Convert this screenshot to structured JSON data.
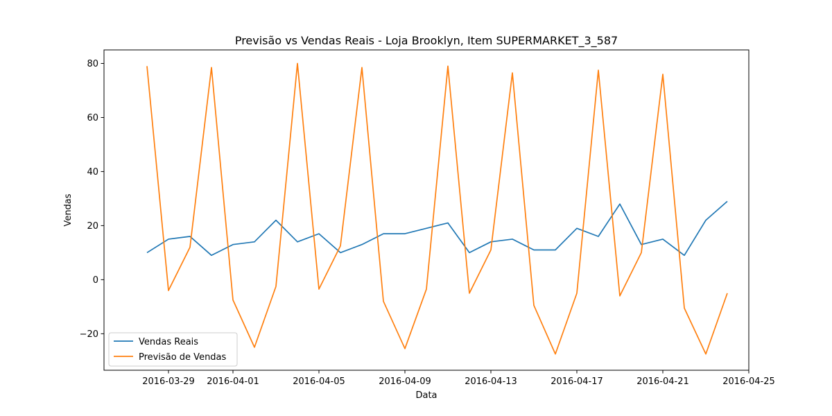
{
  "chart_data": {
    "type": "line",
    "title": "Previsão vs Vendas Reais - Loja Brooklyn, Item SUPERMARKET_3_587",
    "xlabel": "Data",
    "ylabel": "Vendas",
    "xlim": [
      "2016-03-26",
      "2016-04-25"
    ],
    "ylim": [
      -33.5,
      85
    ],
    "x_ticks": [
      "2016-03-29",
      "2016-04-01",
      "2016-04-05",
      "2016-04-09",
      "2016-04-13",
      "2016-04-17",
      "2016-04-21",
      "2016-04-25"
    ],
    "y_ticks": [
      -20,
      0,
      20,
      40,
      60,
      80
    ],
    "grid": false,
    "legend_position": "lower-left",
    "x": [
      "2016-03-28",
      "2016-03-29",
      "2016-03-30",
      "2016-03-31",
      "2016-04-01",
      "2016-04-02",
      "2016-04-03",
      "2016-04-04",
      "2016-04-05",
      "2016-04-06",
      "2016-04-07",
      "2016-04-08",
      "2016-04-09",
      "2016-04-10",
      "2016-04-11",
      "2016-04-12",
      "2016-04-13",
      "2016-04-14",
      "2016-04-15",
      "2016-04-16",
      "2016-04-17",
      "2016-04-18",
      "2016-04-19",
      "2016-04-20",
      "2016-04-21",
      "2016-04-22",
      "2016-04-23",
      "2016-04-24"
    ],
    "series": [
      {
        "name": "Vendas Reais",
        "color": "#1f77b4",
        "values": [
          10,
          15,
          16,
          9,
          13,
          14,
          22,
          14,
          17,
          10,
          13,
          17,
          17,
          19,
          21,
          10,
          14,
          15,
          11,
          11,
          19,
          16,
          28,
          13,
          15,
          9,
          22,
          29
        ]
      },
      {
        "name": "Previsão de Vendas",
        "color": "#ff7f0e",
        "values": [
          79,
          -4,
          12,
          78.5,
          -7.5,
          -25,
          -2.5,
          80,
          -3.5,
          12.5,
          78.5,
          -8,
          -25.5,
          -3.5,
          79,
          -5,
          11,
          76.5,
          -9.5,
          -27.5,
          -5,
          77.5,
          -6,
          10,
          76,
          -10.5,
          -27.5,
          -5
        ]
      }
    ]
  }
}
